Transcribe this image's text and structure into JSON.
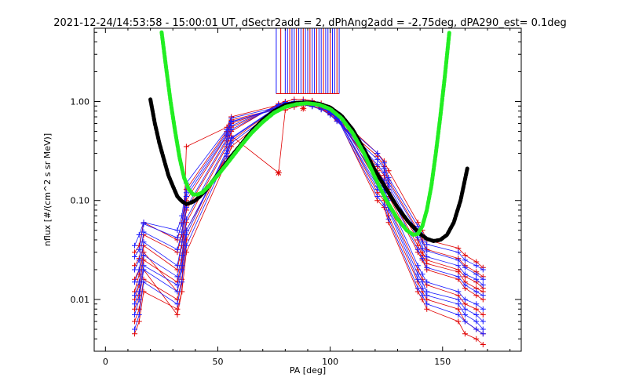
{
  "chart_data": {
    "type": "line",
    "title": "2021-12-24/14:53:58 - 15:00:01 UT, dSectr2add = 2, dPhAng2add = -2.75deg, dPA290_est=   0.1deg",
    "xlabel": "PA [deg]",
    "ylabel": "nflux [#/(cm^2 s sr MeV)]",
    "xlim": [
      -5,
      185
    ],
    "ylim": [
      0.003,
      5.5
    ],
    "yscale": "log",
    "x_ticks": [
      0,
      50,
      100,
      150
    ],
    "x_tick_labels": [
      "0",
      "50",
      "100",
      "150"
    ],
    "y_ticks": [
      0.01,
      0.1,
      1.0
    ],
    "y_tick_labels": [
      "0.01",
      "0.10",
      "1.00"
    ],
    "grid": false,
    "legend": "none",
    "colors": {
      "red": "#e00000",
      "blue": "#1a1aff",
      "green": "#22ee22",
      "black": "#000000"
    },
    "pa_bins": [
      13,
      15,
      17,
      32,
      34,
      36,
      54,
      56,
      77,
      80,
      84,
      88,
      92,
      96,
      100,
      103,
      121,
      124,
      126,
      139,
      141,
      143,
      157,
      160,
      165,
      168
    ],
    "series": [
      {
        "color": "red",
        "values": [
          0.0045,
          0.006,
          0.012,
          0.008,
          0.012,
          0.03,
          0.25,
          0.35,
          0.85,
          0.9,
          0.95,
          0.98,
          0.95,
          0.9,
          0.8,
          0.7,
          0.1,
          0.085,
          0.06,
          0.012,
          0.01,
          0.008,
          0.006,
          0.0045,
          0.004,
          0.0035
        ]
      },
      {
        "color": "red",
        "values": [
          0.006,
          0.008,
          0.016,
          0.01,
          0.016,
          0.04,
          0.3,
          0.4,
          0.9,
          0.95,
          0.99,
          1.0,
          0.98,
          0.92,
          0.82,
          0.72,
          0.12,
          0.1,
          0.07,
          0.015,
          0.012,
          0.01,
          0.008,
          0.006,
          0.005,
          0.0045
        ]
      },
      {
        "color": "red",
        "values": [
          0.01,
          0.014,
          0.025,
          0.015,
          0.025,
          0.06,
          0.35,
          0.5,
          0.95,
          1.0,
          1.05,
          1.05,
          1.02,
          0.96,
          0.86,
          0.76,
          0.15,
          0.12,
          0.09,
          0.02,
          0.016,
          0.014,
          0.011,
          0.009,
          0.008,
          0.007
        ]
      },
      {
        "color": "red",
        "values": [
          0.016,
          0.02,
          0.035,
          0.02,
          0.035,
          0.08,
          0.4,
          0.55,
          0.9,
          0.97,
          1.0,
          1.0,
          0.97,
          0.9,
          0.8,
          0.7,
          0.18,
          0.15,
          0.11,
          0.03,
          0.025,
          0.02,
          0.016,
          0.013,
          0.011,
          0.01
        ]
      },
      {
        "color": "red",
        "values": [
          0.022,
          0.026,
          0.045,
          0.03,
          0.045,
          0.1,
          0.45,
          0.6,
          0.88,
          0.94,
          0.97,
          0.97,
          0.94,
          0.88,
          0.78,
          0.68,
          0.22,
          0.18,
          0.13,
          0.04,
          0.03,
          0.025,
          0.02,
          0.017,
          0.015,
          0.013
        ]
      },
      {
        "color": "red",
        "values": [
          0.03,
          0.035,
          0.06,
          0.04,
          0.06,
          0.13,
          0.5,
          0.65,
          0.85,
          0.9,
          0.93,
          0.93,
          0.9,
          0.84,
          0.74,
          0.64,
          0.28,
          0.22,
          0.16,
          0.05,
          0.04,
          0.032,
          0.026,
          0.022,
          0.019,
          0.017
        ]
      },
      {
        "color": "red",
        "values": [
          0.012,
          0.018,
          0.03,
          0.012,
          0.02,
          0.05,
          0.28,
          0.45,
          0.19,
          0.82,
          0.88,
          0.92,
          0.9,
          0.85,
          0.76,
          0.66,
          0.2,
          0.16,
          0.12,
          0.035,
          0.028,
          0.023,
          0.019,
          0.015,
          0.013,
          0.012
        ]
      },
      {
        "color": "red",
        "values": [
          0.008,
          0.011,
          0.02,
          0.007,
          0.012,
          0.35,
          0.55,
          0.7,
          0.92,
          0.97,
          1.0,
          1.0,
          0.97,
          0.91,
          0.82,
          0.72,
          0.3,
          0.25,
          0.2,
          0.06,
          0.05,
          0.04,
          0.033,
          0.028,
          0.024,
          0.021
        ]
      },
      {
        "color": "blue",
        "values": [
          0.005,
          0.007,
          0.015,
          0.009,
          0.015,
          0.035,
          0.28,
          0.38,
          0.86,
          0.92,
          0.96,
          0.97,
          0.95,
          0.89,
          0.79,
          0.69,
          0.11,
          0.09,
          0.065,
          0.013,
          0.011,
          0.009,
          0.007,
          0.006,
          0.005,
          0.0045
        ]
      },
      {
        "color": "blue",
        "values": [
          0.007,
          0.01,
          0.02,
          0.012,
          0.02,
          0.045,
          0.32,
          0.43,
          0.9,
          0.95,
          0.98,
          0.99,
          0.96,
          0.9,
          0.8,
          0.7,
          0.13,
          0.11,
          0.08,
          0.016,
          0.013,
          0.011,
          0.009,
          0.007,
          0.006,
          0.005
        ]
      },
      {
        "color": "blue",
        "values": [
          0.011,
          0.015,
          0.028,
          0.017,
          0.028,
          0.065,
          0.37,
          0.52,
          0.93,
          0.98,
          1.0,
          1.0,
          0.98,
          0.92,
          0.82,
          0.72,
          0.16,
          0.13,
          0.1,
          0.022,
          0.018,
          0.015,
          0.012,
          0.01,
          0.009,
          0.008
        ]
      },
      {
        "color": "blue",
        "values": [
          0.015,
          0.02,
          0.038,
          0.022,
          0.038,
          0.085,
          0.42,
          0.57,
          0.9,
          0.96,
          0.99,
          0.99,
          0.96,
          0.9,
          0.8,
          0.7,
          0.19,
          0.16,
          0.12,
          0.032,
          0.026,
          0.021,
          0.017,
          0.014,
          0.012,
          0.011
        ]
      },
      {
        "color": "blue",
        "values": [
          0.02,
          0.025,
          0.048,
          0.032,
          0.048,
          0.11,
          0.46,
          0.62,
          0.87,
          0.93,
          0.96,
          0.96,
          0.93,
          0.87,
          0.77,
          0.67,
          0.23,
          0.19,
          0.14,
          0.042,
          0.033,
          0.027,
          0.022,
          0.018,
          0.016,
          0.014
        ]
      },
      {
        "color": "blue",
        "values": [
          0.027,
          0.032,
          0.058,
          0.042,
          0.058,
          0.12,
          0.48,
          0.63,
          0.84,
          0.89,
          0.92,
          0.92,
          0.89,
          0.83,
          0.73,
          0.63,
          0.26,
          0.21,
          0.15,
          0.048,
          0.038,
          0.031,
          0.025,
          0.021,
          0.018,
          0.016
        ]
      },
      {
        "color": "blue",
        "values": [
          0.035,
          0.045,
          0.06,
          0.05,
          0.07,
          0.15,
          0.52,
          0.68,
          0.88,
          0.94,
          0.97,
          0.97,
          0.94,
          0.88,
          0.78,
          0.68,
          0.3,
          0.24,
          0.17,
          0.055,
          0.045,
          0.036,
          0.03,
          0.025,
          0.022,
          0.02
        ]
      },
      {
        "color": "blue",
        "values": [
          0.009,
          0.012,
          0.022,
          0.014,
          0.022,
          0.05,
          0.3,
          0.42,
          0.89,
          0.95,
          0.98,
          0.99,
          0.96,
          0.9,
          0.8,
          0.7,
          0.14,
          0.12,
          0.085,
          0.018,
          0.015,
          0.012,
          0.01,
          0.008,
          0.007,
          0.006
        ]
      }
    ],
    "black_curve": {
      "color": "black",
      "x": [
        20,
        22,
        24,
        26,
        28,
        30,
        32,
        34,
        36,
        38,
        40,
        42,
        45,
        48,
        52,
        56,
        60,
        65,
        70,
        75,
        80,
        85,
        90,
        95,
        100,
        105,
        110,
        115,
        120,
        125,
        130,
        135,
        140,
        143,
        146,
        149,
        152,
        155,
        158,
        161
      ],
      "y": [
        1.05,
        0.6,
        0.38,
        0.26,
        0.18,
        0.14,
        0.11,
        0.098,
        0.092,
        0.095,
        0.1,
        0.11,
        0.13,
        0.16,
        0.21,
        0.28,
        0.36,
        0.5,
        0.65,
        0.8,
        0.92,
        0.97,
        0.98,
        0.95,
        0.87,
        0.72,
        0.52,
        0.33,
        0.2,
        0.13,
        0.085,
        0.06,
        0.046,
        0.041,
        0.039,
        0.04,
        0.045,
        0.06,
        0.1,
        0.21
      ]
    },
    "green_curve": {
      "color": "green",
      "x": [
        25,
        27,
        29,
        31,
        33,
        35,
        37,
        39,
        41,
        43,
        46,
        50,
        55,
        60,
        65,
        70,
        75,
        80,
        85,
        90,
        95,
        100,
        105,
        110,
        115,
        120,
        125,
        130,
        134,
        137,
        139,
        141,
        143,
        145,
        147,
        149,
        151,
        153
      ],
      "y": [
        5.0,
        2.2,
        1.0,
        0.5,
        0.27,
        0.17,
        0.13,
        0.115,
        0.115,
        0.12,
        0.14,
        0.18,
        0.25,
        0.35,
        0.48,
        0.62,
        0.77,
        0.88,
        0.94,
        0.96,
        0.93,
        0.84,
        0.68,
        0.48,
        0.3,
        0.17,
        0.1,
        0.065,
        0.05,
        0.045,
        0.046,
        0.055,
        0.08,
        0.14,
        0.3,
        0.7,
        1.8,
        5.0
      ]
    },
    "spikes": {
      "color": "blue",
      "x": [
        76,
        78,
        80,
        81,
        82,
        83,
        84,
        85,
        86,
        87,
        88,
        89,
        90,
        91,
        92,
        93,
        94,
        95,
        96,
        97,
        98,
        99,
        100,
        101,
        102,
        103,
        104
      ],
      "y_bottom": 1.2,
      "y_top": 5.5
    },
    "star_markers": [
      {
        "x": 77,
        "y": 0.19
      },
      {
        "x": 88,
        "y": 0.85
      }
    ]
  }
}
